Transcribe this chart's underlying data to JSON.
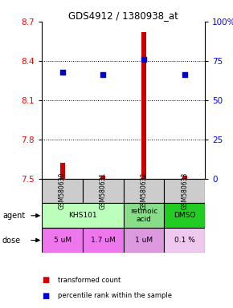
{
  "title": "GDS4912 / 1380938_at",
  "samples": [
    "GSM580630",
    "GSM580631",
    "GSM580632",
    "GSM580633"
  ],
  "bar_values": [
    7.62,
    7.52,
    8.62,
    7.52
  ],
  "bar_base": 7.5,
  "percentile_values": [
    68,
    66,
    76,
    66
  ],
  "ylim": [
    7.5,
    8.7
  ],
  "yticks_left": [
    7.5,
    7.8,
    8.1,
    8.4,
    8.7
  ],
  "yticks_right": [
    0,
    25,
    50,
    75,
    100
  ],
  "bar_color": "#cc0000",
  "dot_color": "#0000cc",
  "agent_configs": [
    {
      "c0": 0,
      "c1": 2,
      "text": "KHS101",
      "color": "#bbffbb"
    },
    {
      "c0": 2,
      "c1": 3,
      "text": "retinoic\nacid",
      "color": "#88dd88"
    },
    {
      "c0": 3,
      "c1": 4,
      "text": "DMSO",
      "color": "#22cc22"
    }
  ],
  "dose_labels": [
    "5 uM",
    "1.7 uM",
    "1 uM",
    "0.1 %"
  ],
  "dose_colors": [
    "#ee77ee",
    "#ee77ee",
    "#dd99dd",
    "#eec8ee"
  ],
  "sample_bg_color": "#cccccc",
  "legend_bar_label": "transformed count",
  "legend_dot_label": "percentile rank within the sample"
}
